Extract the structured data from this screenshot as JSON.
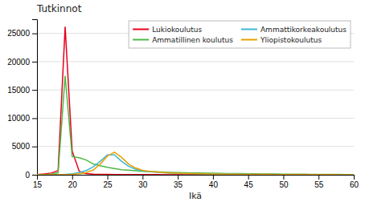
{
  "chart_data": {
    "type": "line",
    "title": "Tutkinnot",
    "x_label": "Ikä",
    "x": [
      15,
      16,
      17,
      18,
      19,
      20,
      21,
      22,
      23,
      24,
      25,
      26,
      27,
      28,
      29,
      30,
      31,
      32,
      33,
      34,
      35,
      36,
      37,
      38,
      39,
      40,
      41,
      42,
      43,
      44,
      45,
      46,
      47,
      48,
      49,
      50,
      51,
      52,
      53,
      54,
      55,
      56,
      57,
      58,
      59,
      60
    ],
    "series": [
      {
        "name": "Lukiokoulutus",
        "color": "#e8001c",
        "values": [
          50,
          150,
          300,
          700,
          26200,
          4200,
          600,
          200,
          100,
          70,
          55,
          45,
          38,
          32,
          28,
          24,
          20,
          18,
          15,
          13,
          11,
          10,
          9,
          8,
          7,
          6,
          6,
          5,
          5,
          4,
          4,
          4,
          3,
          3,
          3,
          3,
          2,
          2,
          2,
          2,
          2,
          1,
          1,
          1,
          1,
          1
        ]
      },
      {
        "name": "Ammatillinen koulutus",
        "color": "#4db845",
        "values": [
          20,
          50,
          100,
          350,
          17500,
          3200,
          3000,
          2600,
          1900,
          1600,
          1300,
          1100,
          900,
          800,
          700,
          620,
          570,
          520,
          470,
          430,
          390,
          360,
          330,
          310,
          290,
          270,
          250,
          230,
          215,
          200,
          185,
          170,
          158,
          145,
          133,
          122,
          112,
          103,
          94,
          86,
          78,
          71,
          64,
          57,
          51,
          45
        ]
      },
      {
        "name": "Ammattikorkeakoulutus",
        "color": "#3db8d4",
        "values": [
          0,
          0,
          0,
          0,
          80,
          180,
          380,
          750,
          1400,
          2400,
          3500,
          3500,
          2400,
          1500,
          1000,
          680,
          520,
          430,
          360,
          300,
          260,
          225,
          195,
          170,
          155,
          140,
          125,
          112,
          100,
          90,
          82,
          74,
          67,
          60,
          54,
          49,
          44,
          39,
          35,
          31,
          28,
          25,
          22,
          19,
          17,
          14
        ]
      },
      {
        "name": "Yliopistokoulutus",
        "color": "#e8a000",
        "values": [
          0,
          0,
          0,
          0,
          30,
          80,
          180,
          380,
          850,
          1900,
          3300,
          4000,
          3100,
          1900,
          1200,
          780,
          590,
          480,
          390,
          325,
          270,
          230,
          195,
          168,
          148,
          130,
          115,
          100,
          90,
          82,
          74,
          67,
          60,
          54,
          49,
          44,
          39,
          35,
          31,
          28,
          25,
          22,
          19,
          16,
          14,
          12
        ]
      }
    ],
    "xlim": [
      15,
      60
    ],
    "xticks": [
      15,
      20,
      25,
      30,
      35,
      40,
      45,
      50,
      55,
      60
    ],
    "ylim": [
      0,
      27500
    ],
    "yticks": [
      0,
      5000,
      10000,
      15000,
      20000,
      25000
    ],
    "grid": true,
    "legend": "upper right"
  }
}
